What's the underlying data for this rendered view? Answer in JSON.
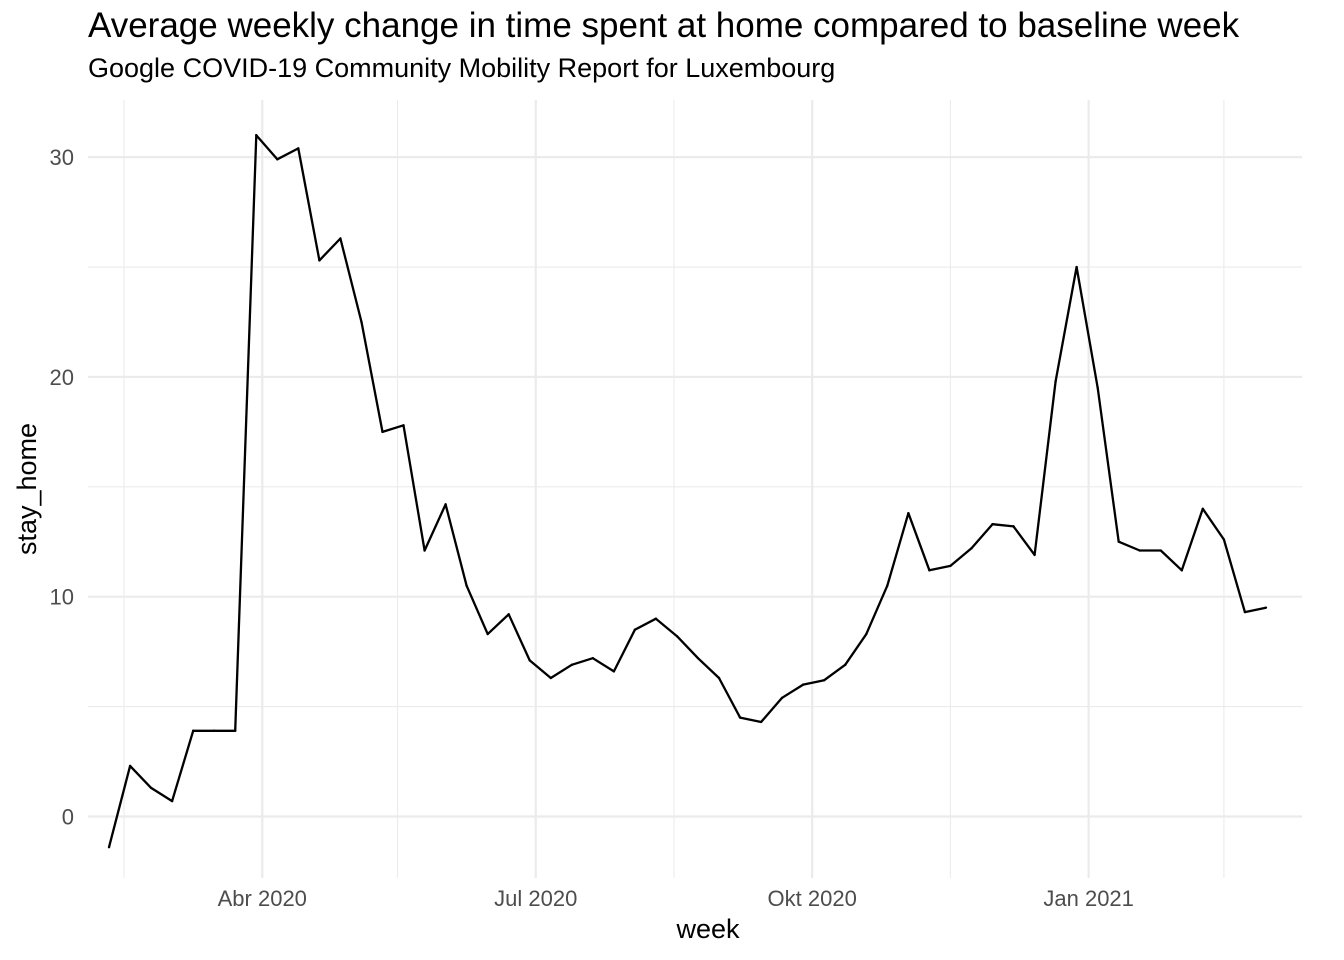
{
  "chart_data": {
    "type": "line",
    "title": "Average weekly change in time spent at home compared to baseline week",
    "subtitle": "Google COVID-19 Community Mobility Report for Luxembourg",
    "xlabel": "week",
    "ylabel": "stay_home",
    "x_tick_labels": [
      {
        "date": "2020-04-01",
        "label": "Abr 2020"
      },
      {
        "date": "2020-07-01",
        "label": "Jul 2020"
      },
      {
        "date": "2020-10-01",
        "label": "Okt 2020"
      },
      {
        "date": "2021-01-01",
        "label": "Jan 2021"
      }
    ],
    "x_minor_breaks": [
      "2020-02-15",
      "2020-05-16",
      "2020-08-16",
      "2020-11-16",
      "2021-02-15"
    ],
    "y_ticks": [
      0,
      10,
      20,
      30
    ],
    "xlim": [
      "2020-02-03",
      "2021-03-13"
    ],
    "ylim": [
      -2.8,
      32.6
    ],
    "grid": true,
    "line_color": "#000000",
    "series": [
      {
        "x": [
          "2020-02-10",
          "2020-02-17",
          "2020-02-24",
          "2020-03-02",
          "2020-03-09",
          "2020-03-16",
          "2020-03-23",
          "2020-03-30",
          "2020-04-06",
          "2020-04-13",
          "2020-04-20",
          "2020-04-27",
          "2020-05-04",
          "2020-05-11",
          "2020-05-18",
          "2020-05-25",
          "2020-06-01",
          "2020-06-08",
          "2020-06-15",
          "2020-06-22",
          "2020-06-29",
          "2020-07-06",
          "2020-07-13",
          "2020-07-20",
          "2020-07-27",
          "2020-08-03",
          "2020-08-10",
          "2020-08-17",
          "2020-08-24",
          "2020-08-31",
          "2020-09-07",
          "2020-09-14",
          "2020-09-21",
          "2020-09-28",
          "2020-10-05",
          "2020-10-12",
          "2020-10-19",
          "2020-10-26",
          "2020-11-02",
          "2020-11-09",
          "2020-11-16",
          "2020-11-23",
          "2020-11-30",
          "2020-12-07",
          "2020-12-14",
          "2020-12-21",
          "2020-12-28",
          "2021-01-04",
          "2021-01-11",
          "2021-01-18",
          "2021-01-25",
          "2021-02-01",
          "2021-02-08",
          "2021-02-15",
          "2021-02-22",
          "2021-03-01"
        ],
        "values": [
          -1.4,
          2.3,
          1.3,
          0.7,
          3.9,
          3.9,
          3.9,
          31.0,
          29.9,
          30.4,
          25.3,
          26.3,
          22.5,
          17.5,
          17.8,
          12.1,
          14.2,
          10.5,
          8.3,
          9.2,
          7.1,
          6.3,
          6.9,
          7.2,
          6.6,
          8.5,
          9.0,
          8.2,
          7.2,
          6.3,
          4.5,
          4.3,
          5.4,
          6.0,
          6.2,
          6.9,
          8.3,
          10.5,
          13.8,
          11.2,
          11.4,
          12.2,
          13.3,
          13.2,
          11.9,
          19.8,
          25.0,
          19.5,
          12.5,
          12.1,
          12.1,
          11.2,
          14.0,
          12.6,
          9.3,
          9.5
        ]
      }
    ]
  }
}
